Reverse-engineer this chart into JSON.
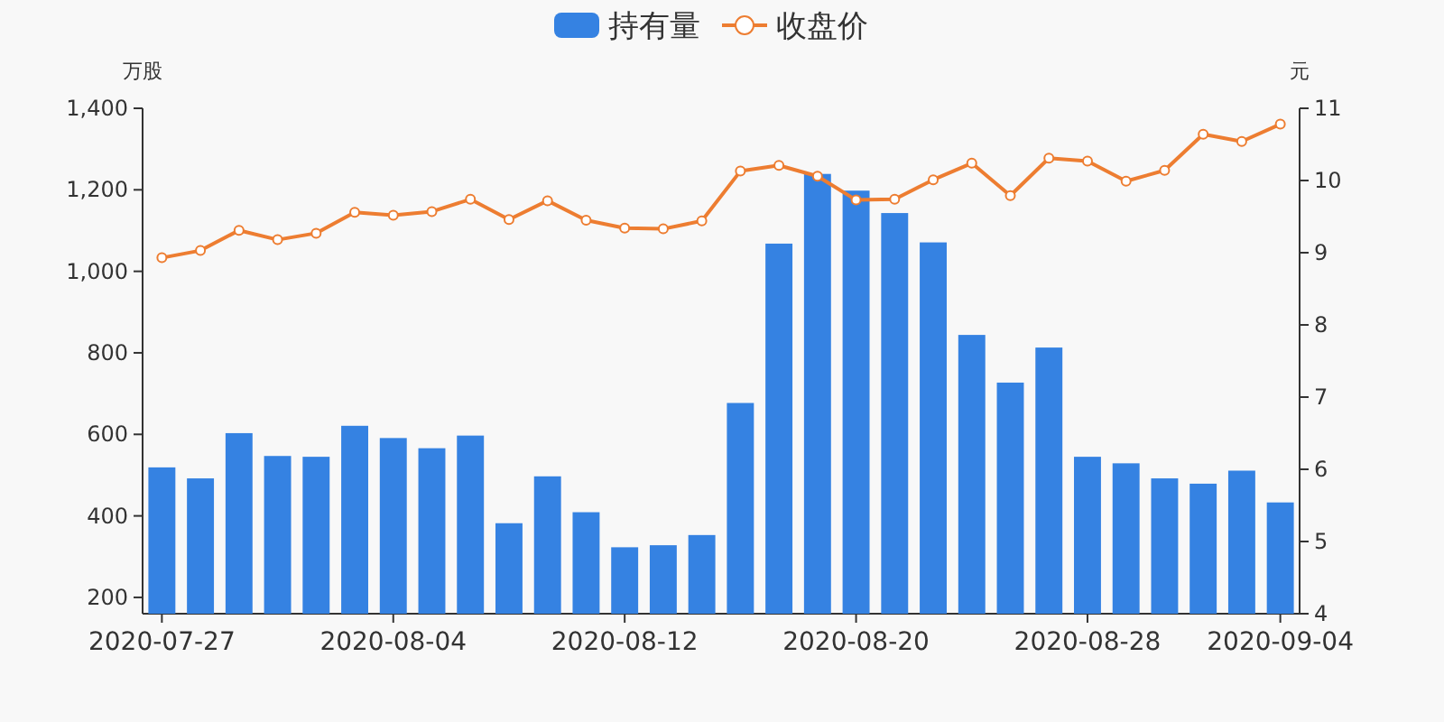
{
  "chart_data": {
    "type": "bar",
    "ylabel": "万股",
    "y2label": "元",
    "legend": "top",
    "grid": false,
    "categories": [
      "2020-07-27",
      null,
      null,
      null,
      null,
      null,
      "2020-08-04",
      null,
      null,
      null,
      null,
      null,
      "2020-08-12",
      null,
      null,
      null,
      null,
      null,
      "2020-08-20",
      null,
      null,
      null,
      null,
      null,
      "2020-08-28",
      null,
      null,
      null,
      null,
      "2020-09-04"
    ],
    "series": [
      {
        "name": "持有量",
        "color": "#3582e2",
        "values": [
          519,
          492,
          603,
          547,
          545,
          621,
          591,
          566,
          597,
          382,
          497,
          409,
          323,
          328,
          353,
          677,
          1068,
          1239,
          1198,
          1143,
          1071,
          844,
          727,
          813,
          545,
          529,
          492,
          479,
          511,
          433
        ]
      },
      {
        "name": "收盘价",
        "type": "line",
        "axis": "y2",
        "color": "#ed7d31",
        "marker": "circle",
        "values": [
          8.93,
          9.03,
          9.31,
          9.18,
          9.27,
          9.56,
          9.52,
          9.57,
          9.74,
          9.46,
          9.72,
          9.45,
          9.34,
          9.33,
          9.44,
          10.13,
          10.21,
          10.06,
          9.73,
          9.74,
          10.01,
          10.24,
          9.79,
          10.31,
          10.27,
          9.99,
          10.14,
          10.64,
          10.54,
          10.78
        ]
      }
    ],
    "ylim": [
      160,
      1400
    ],
    "yticks": [
      {
        "value": 200,
        "label": "200"
      },
      {
        "value": 400,
        "label": "400"
      },
      {
        "value": 600,
        "label": "600"
      },
      {
        "value": 800,
        "label": "800"
      },
      {
        "value": 1000,
        "label": "1,000"
      },
      {
        "value": 1200,
        "label": "1,200"
      },
      {
        "value": 1400,
        "label": "1,400"
      }
    ],
    "y2lim": [
      4,
      11
    ],
    "y2ticks": [
      4,
      5,
      6,
      7,
      8,
      9,
      10,
      11
    ]
  }
}
